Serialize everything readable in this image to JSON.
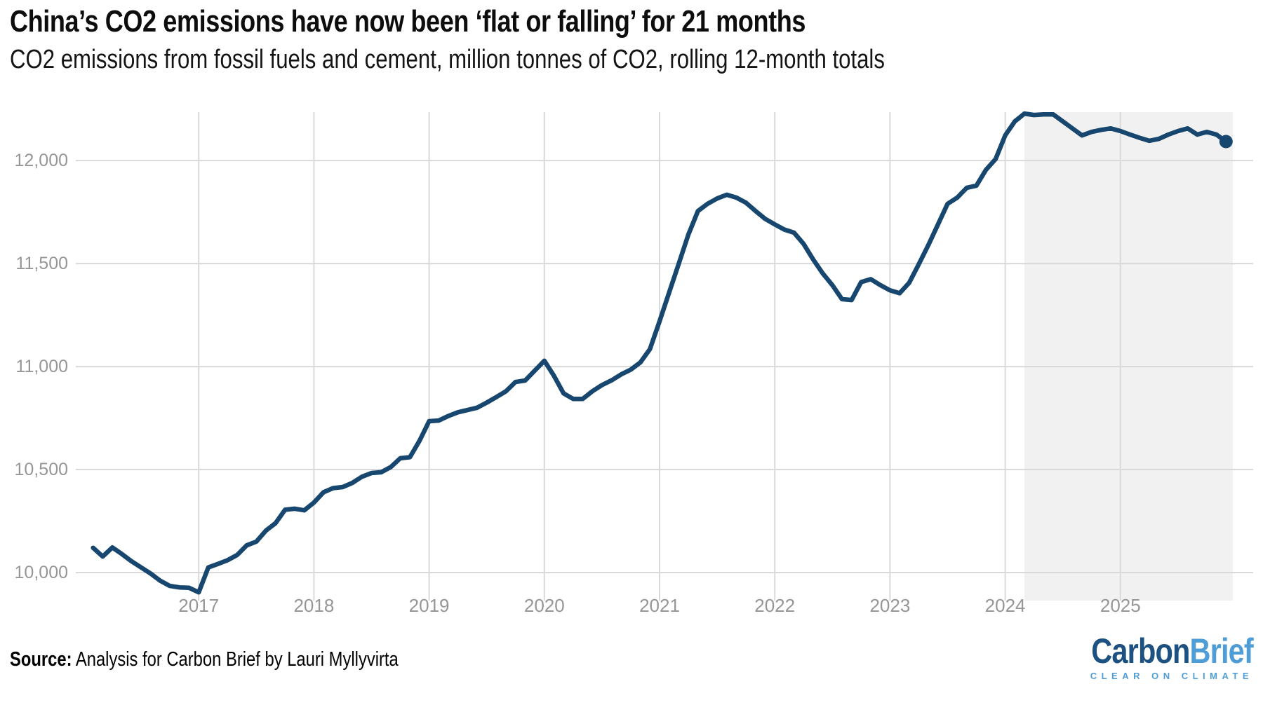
{
  "header": {
    "title": "China’s CO2 emissions have now been ‘flat or falling’ for 21 months",
    "subtitle": "CO2 emissions from fossil fuels and cement, million tonnes of CO2, rolling 12-month totals"
  },
  "footer": {
    "source_label": "Source:",
    "source_text": "Analysis for Carbon Brief by Lauri Myllyvirta"
  },
  "logo": {
    "part1": "Carbon",
    "part2": "Brief",
    "tagline": "CLEAR ON CLIMATE",
    "color_dark": "#1d5181",
    "color_light": "#4f9dd7"
  },
  "chart_data": {
    "type": "line",
    "title": "China’s CO2 emissions have now been ‘flat or falling’ for 21 months",
    "subtitle": "CO2 emissions from fossil fuels and cement, million tonnes of CO2, rolling 12-month totals",
    "series_name": "Rolling 12-month total CO2 emissions (million tonnes)",
    "months": [
      "2016-02",
      "2016-03",
      "2016-04",
      "2016-05",
      "2016-06",
      "2016-07",
      "2016-08",
      "2016-09",
      "2016-10",
      "2016-11",
      "2016-12",
      "2017-01",
      "2017-02",
      "2017-03",
      "2017-04",
      "2017-05",
      "2017-06",
      "2017-07",
      "2017-08",
      "2017-09",
      "2017-10",
      "2017-11",
      "2017-12",
      "2018-01",
      "2018-02",
      "2018-03",
      "2018-04",
      "2018-05",
      "2018-06",
      "2018-07",
      "2018-08",
      "2018-09",
      "2018-10",
      "2018-11",
      "2018-12",
      "2019-01",
      "2019-02",
      "2019-03",
      "2019-04",
      "2019-05",
      "2019-06",
      "2019-07",
      "2019-08",
      "2019-09",
      "2019-10",
      "2019-11",
      "2019-12",
      "2020-01",
      "2020-02",
      "2020-03",
      "2020-04",
      "2020-05",
      "2020-06",
      "2020-07",
      "2020-08",
      "2020-09",
      "2020-10",
      "2020-11",
      "2020-12",
      "2021-01",
      "2021-02",
      "2021-03",
      "2021-04",
      "2021-05",
      "2021-06",
      "2021-07",
      "2021-08",
      "2021-09",
      "2021-10",
      "2021-11",
      "2021-12",
      "2022-01",
      "2022-02",
      "2022-03",
      "2022-04",
      "2022-05",
      "2022-06",
      "2022-07",
      "2022-08",
      "2022-09",
      "2022-10",
      "2022-11",
      "2022-12",
      "2023-01",
      "2023-02",
      "2023-03",
      "2023-04",
      "2023-05",
      "2023-06",
      "2023-07",
      "2023-08",
      "2023-09",
      "2023-10",
      "2023-11",
      "2023-12",
      "2024-01",
      "2024-02",
      "2024-03",
      "2024-04",
      "2024-05",
      "2024-06",
      "2024-07",
      "2024-08",
      "2024-09",
      "2024-10",
      "2024-11",
      "2024-12",
      "2025-01",
      "2025-02",
      "2025-03",
      "2025-04",
      "2025-05",
      "2025-06",
      "2025-07",
      "2025-08",
      "2025-09",
      "2025-10",
      "2025-11",
      "2025-12"
    ],
    "values": [
      10120,
      10078,
      10122,
      10090,
      10055,
      10025,
      9995,
      9960,
      9935,
      9928,
      9926,
      9904,
      10025,
      10042,
      10060,
      10085,
      10132,
      10150,
      10204,
      10240,
      10305,
      10310,
      10302,
      10340,
      10390,
      10410,
      10415,
      10435,
      10465,
      10483,
      10487,
      10512,
      10555,
      10560,
      10640,
      10735,
      10738,
      10760,
      10778,
      10789,
      10800,
      10825,
      10852,
      10880,
      10925,
      10932,
      10980,
      11028,
      10955,
      10870,
      10843,
      10843,
      10880,
      10910,
      10933,
      10962,
      10985,
      11020,
      11085,
      11220,
      11360,
      11500,
      11640,
      11755,
      11790,
      11816,
      11834,
      11820,
      11795,
      11755,
      11717,
      11690,
      11665,
      11650,
      11595,
      11520,
      11452,
      11395,
      11327,
      11323,
      11410,
      11424,
      11395,
      11370,
      11356,
      11407,
      11497,
      11590,
      11690,
      11790,
      11820,
      11868,
      11878,
      11955,
      12007,
      12122,
      12190,
      12228,
      12221,
      12224,
      12224,
      12190,
      12156,
      12122,
      12139,
      12149,
      12156,
      12143,
      12126,
      12110,
      12096,
      12105,
      12126,
      12143,
      12156,
      12126,
      12139,
      12126,
      12092
    ],
    "ylim": [
      9864,
      12235
    ],
    "yticks": [
      10000,
      10500,
      11000,
      11500,
      12000
    ],
    "ytick_labels": [
      "10,000",
      "10,500",
      "11,000",
      "11,500",
      "12,000"
    ],
    "xticks": [
      2017,
      2018,
      2019,
      2020,
      2021,
      2022,
      2023,
      2024,
      2025
    ],
    "grid": true,
    "legend": "none",
    "line_color": "#17476f",
    "grid_color": "#d9d9d9",
    "tick_color": "#969696",
    "endpoint_dot": true,
    "highlight_region": {
      "start_month": "2024-03",
      "end_month": "2025-12",
      "color": "#f1f1f1"
    }
  }
}
